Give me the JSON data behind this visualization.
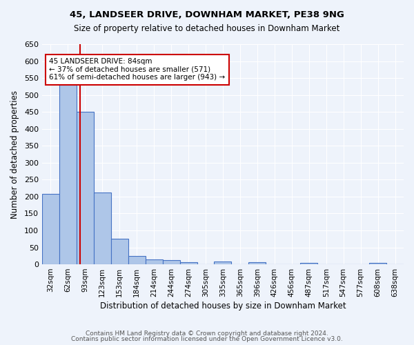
{
  "title1": "45, LANDSEER DRIVE, DOWNHAM MARKET, PE38 9NG",
  "title2": "Size of property relative to detached houses in Downham Market",
  "xlabel": "Distribution of detached houses by size in Downham Market",
  "ylabel": "Number of detached properties",
  "footer1": "Contains HM Land Registry data © Crown copyright and database right 2024.",
  "footer2": "Contains public sector information licensed under the Open Government Licence v3.0.",
  "categories": [
    "32sqm",
    "62sqm",
    "93sqm",
    "123sqm",
    "153sqm",
    "184sqm",
    "214sqm",
    "244sqm",
    "274sqm",
    "305sqm",
    "335sqm",
    "365sqm",
    "396sqm",
    "426sqm",
    "456sqm",
    "487sqm",
    "517sqm",
    "547sqm",
    "577sqm",
    "608sqm",
    "638sqm"
  ],
  "values": [
    208,
    530,
    450,
    213,
    75,
    25,
    14,
    12,
    6,
    0,
    8,
    0,
    7,
    0,
    0,
    4,
    0,
    0,
    0,
    5,
    0
  ],
  "bar_color": "#aec6e8",
  "bar_edge_color": "#4472c4",
  "bg_color": "#eef3fb",
  "grid_color": "#ffffff",
  "annotation_text": "45 LANDSEER DRIVE: 84sqm\n← 37% of detached houses are smaller (571)\n61% of semi-detached houses are larger (943) →",
  "annotation_box_color": "#ffffff",
  "annotation_box_edge": "#cc0000",
  "red_line_x": 1.71,
  "ylim": [
    0,
    650
  ],
  "yticks": [
    0,
    50,
    100,
    150,
    200,
    250,
    300,
    350,
    400,
    450,
    500,
    550,
    600,
    650
  ]
}
